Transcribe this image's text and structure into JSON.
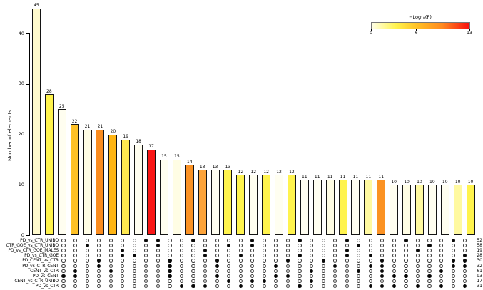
{
  "chart_data": {
    "type": "bar",
    "title": "",
    "ylabel": "Number of elements",
    "ylim": [
      0,
      45
    ],
    "yticks": [
      0,
      10,
      20,
      30,
      40
    ],
    "legend": {
      "title_prefix": "−Log",
      "title_sub": "10",
      "title_suffix": "(P)",
      "range": [
        0,
        13
      ],
      "ticks": [
        0,
        6,
        13
      ],
      "gradient": [
        {
          "pos": 0,
          "color": "#FFFFE8"
        },
        {
          "pos": 25,
          "color": "#FFF34D"
        },
        {
          "pos": 46,
          "color": "#FFC125"
        },
        {
          "pos": 72,
          "color": "#FF8A1E"
        },
        {
          "pos": 100,
          "color": "#F90F0F"
        }
      ]
    },
    "sets": [
      {
        "label": "PD_vs_CTR_UNIBO",
        "total": 52
      },
      {
        "label": "CTR_GOE_vs_CTR_UNIBO",
        "total": 58
      },
      {
        "label": "PD_vs_CTR_GOE_MALES",
        "total": 19
      },
      {
        "label": "PD_vs_CTR_GOE",
        "total": 28
      },
      {
        "label": "PD_CENT_vs_CTR",
        "total": 30
      },
      {
        "label": "PD_vs_CTR_CENT",
        "total": 32
      },
      {
        "label": "CENT_vs_CTR",
        "total": 61
      },
      {
        "label": "PD_vs_CENT",
        "total": 93
      },
      {
        "label": "CENT_vs_CTR_UNIBO",
        "total": 17
      },
      {
        "label": "PD_vs_CTR",
        "total": 31
      }
    ],
    "bars": [
      {
        "value": 45,
        "color": "#FFFACD",
        "sets": [
          7
        ]
      },
      {
        "value": 28,
        "color": "#FFF34D",
        "sets": [
          6,
          7
        ]
      },
      {
        "value": 25,
        "color": "#FFFEF0",
        "sets": [
          1
        ]
      },
      {
        "value": 22,
        "color": "#FFC125",
        "sets": [
          4,
          5
        ]
      },
      {
        "value": 21,
        "color": "#FFFDE4",
        "sets": [
          6
        ]
      },
      {
        "value": 21,
        "color": "#FB8C1E",
        "sets": [
          2,
          3
        ]
      },
      {
        "value": 20,
        "color": "#FFB514",
        "sets": [
          3
        ]
      },
      {
        "value": 19,
        "color": "#FFE94F",
        "sets": [
          0
        ]
      },
      {
        "value": 18,
        "color": "#FFFEF0",
        "sets": [
          0,
          1
        ]
      },
      {
        "value": 17,
        "color": "#F91616",
        "sets": [
          4,
          5,
          6,
          7
        ]
      },
      {
        "value": 15,
        "color": "#FFFEF0",
        "sets": [
          9
        ]
      },
      {
        "value": 15,
        "color": "#FFFDE4",
        "sets": [
          0,
          9
        ]
      },
      {
        "value": 14,
        "color": "#FB9224",
        "sets": [
          2,
          3,
          9
        ]
      },
      {
        "value": 13,
        "color": "#FCA33A",
        "sets": [
          4,
          5,
          7
        ]
      },
      {
        "value": 13,
        "color": "#FFFEF0",
        "sets": [
          1,
          8
        ]
      },
      {
        "value": 13,
        "color": "#FFF34D",
        "sets": [
          3,
          9
        ]
      },
      {
        "value": 12,
        "color": "#FFF34D",
        "sets": [
          0,
          1,
          8
        ]
      },
      {
        "value": 12,
        "color": "#FFFEF0",
        "sets": [
          8
        ]
      },
      {
        "value": 12,
        "color": "#FFF34D",
        "sets": [
          5,
          7
        ]
      },
      {
        "value": 12,
        "color": "#FFFEF0",
        "sets": [
          4,
          7
        ]
      },
      {
        "value": 12,
        "color": "#FFF34D",
        "sets": [
          0,
          3,
          9
        ]
      },
      {
        "value": 11,
        "color": "#FFFEF0",
        "sets": [
          6,
          8
        ]
      },
      {
        "value": 11,
        "color": "#FFFEF0",
        "sets": [
          4
        ]
      },
      {
        "value": 11,
        "color": "#FFFDE4",
        "sets": [
          5
        ]
      },
      {
        "value": 11,
        "color": "#FFF34D",
        "sets": [
          0,
          2,
          3
        ]
      },
      {
        "value": 11,
        "color": "#FFFEF0",
        "sets": [
          1,
          6
        ]
      },
      {
        "value": 11,
        "color": "#FFF9A0",
        "sets": [
          3,
          5,
          9
        ]
      },
      {
        "value": 11,
        "color": "#FB9224",
        "sets": [
          4,
          5,
          6,
          7,
          9
        ]
      },
      {
        "value": 10,
        "color": "#FFFEF0",
        "sets": [
          7,
          9
        ]
      },
      {
        "value": 10,
        "color": "#FFFDE4",
        "sets": [
          0,
          7
        ]
      },
      {
        "value": 10,
        "color": "#FFF9A0",
        "sets": [
          2,
          9
        ]
      },
      {
        "value": 10,
        "color": "#FFFEF0",
        "sets": [
          1,
          7
        ]
      },
      {
        "value": 10,
        "color": "#FFFEF0",
        "sets": [
          6,
          9
        ]
      },
      {
        "value": 10,
        "color": "#FFF9A0",
        "sets": [
          0,
          4,
          5
        ]
      },
      {
        "value": 10,
        "color": "#FFF34D",
        "sets": [
          3,
          4,
          5,
          9
        ]
      }
    ]
  }
}
